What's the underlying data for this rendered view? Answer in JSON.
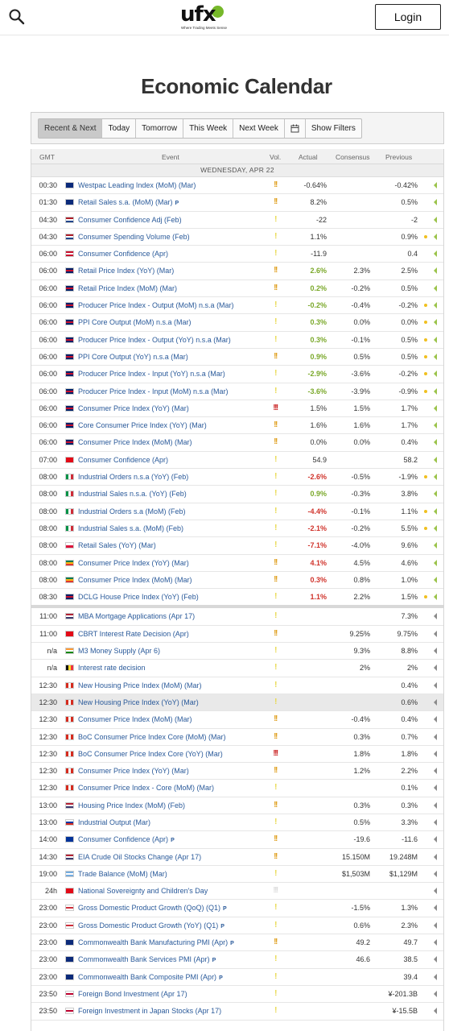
{
  "header": {
    "logo_text": "ufx",
    "logo_tagline": "Where Trading Meets Sense",
    "login_label": "Login",
    "icons": {
      "search": "search-icon",
      "calendar": "calendar-icon"
    }
  },
  "page_title": "Economic Calendar",
  "filters": {
    "buttons": [
      "Recent & Next",
      "Today",
      "Tomorrow",
      "This Week",
      "Next Week"
    ],
    "active": "Recent & Next",
    "show_filters_label": "Show Filters"
  },
  "table": {
    "columns": {
      "gmt": "GMT",
      "event": "Event",
      "vol": "Vol.",
      "actual": "Actual",
      "consensus": "Consensus",
      "previous": "Previous"
    },
    "day_header": "WEDNESDAY, APR 22",
    "colors": {
      "volatility_high": "#cc2a2a",
      "volatility_med": "#e0a020",
      "volatility_low": "#e8d84a",
      "positive": "#7aa82a",
      "negative": "#d0332b",
      "link": "#2a5a9a",
      "outcome_dot": "#f0c020"
    },
    "rows": [
      {
        "time": "00:30",
        "flag": "AU",
        "event": "Westpac Leading Index (MoM) (Mar)",
        "vol": "!!",
        "vol_level": "med",
        "actual": "-0.64%",
        "actual_class": "",
        "consensus": "",
        "previous": "-0.42%",
        "dot": false,
        "green_arrow": true
      },
      {
        "time": "01:30",
        "flag": "AU",
        "event": "Retail Sales s.a. (MoM) (Mar)",
        "pmark": true,
        "vol": "!!",
        "vol_level": "med",
        "actual": "8.2%",
        "actual_class": "",
        "consensus": "",
        "previous": "0.5%",
        "dot": false,
        "green_arrow": true
      },
      {
        "time": "04:30",
        "flag": "NL",
        "event": "Consumer Confidence Adj (Feb)",
        "vol": "!",
        "vol_level": "low",
        "actual": "-22",
        "actual_class": "",
        "consensus": "",
        "previous": "-2",
        "dot": false,
        "green_arrow": true
      },
      {
        "time": "04:30",
        "flag": "NL",
        "event": "Consumer Spending Volume (Feb)",
        "vol": "!",
        "vol_level": "low",
        "actual": "1.1%",
        "actual_class": "",
        "consensus": "",
        "previous": "0.9%",
        "dot": true,
        "green_arrow": true
      },
      {
        "time": "06:00",
        "flag": "DK",
        "event": "Consumer Confidence (Apr)",
        "vol": "!",
        "vol_level": "low",
        "actual": "-11.9",
        "actual_class": "",
        "consensus": "",
        "previous": "0.4",
        "dot": false,
        "green_arrow": true
      },
      {
        "time": "06:00",
        "flag": "GB",
        "event": "Retail Price Index (YoY) (Mar)",
        "vol": "!!",
        "vol_level": "med",
        "actual": "2.6%",
        "actual_class": "pos",
        "consensus": "2.3%",
        "previous": "2.5%",
        "dot": false,
        "green_arrow": true
      },
      {
        "time": "06:00",
        "flag": "GB",
        "event": "Retail Price Index (MoM) (Mar)",
        "vol": "!!",
        "vol_level": "med",
        "actual": "0.2%",
        "actual_class": "pos",
        "consensus": "-0.2%",
        "previous": "0.5%",
        "dot": false,
        "green_arrow": true
      },
      {
        "time": "06:00",
        "flag": "GB",
        "event": "Producer Price Index - Output (MoM) n.s.a (Mar)",
        "vol": "!",
        "vol_level": "low",
        "actual": "-0.2%",
        "actual_class": "pos",
        "consensus": "-0.4%",
        "previous": "-0.2%",
        "dot": true,
        "green_arrow": true
      },
      {
        "time": "06:00",
        "flag": "GB",
        "event": "PPI Core Output (MoM) n.s.a (Mar)",
        "vol": "!",
        "vol_level": "low",
        "actual": "0.3%",
        "actual_class": "pos",
        "consensus": "0.0%",
        "previous": "0.0%",
        "dot": true,
        "green_arrow": true
      },
      {
        "time": "06:00",
        "flag": "GB",
        "event": "Producer Price Index - Output (YoY) n.s.a (Mar)",
        "vol": "!",
        "vol_level": "low",
        "actual": "0.3%",
        "actual_class": "pos",
        "consensus": "-0.1%",
        "previous": "0.5%",
        "dot": true,
        "green_arrow": true
      },
      {
        "time": "06:00",
        "flag": "GB",
        "event": "PPI Core Output (YoY) n.s.a (Mar)",
        "vol": "!!",
        "vol_level": "med",
        "actual": "0.9%",
        "actual_class": "pos",
        "consensus": "0.5%",
        "previous": "0.5%",
        "dot": true,
        "green_arrow": true
      },
      {
        "time": "06:00",
        "flag": "GB",
        "event": "Producer Price Index - Input (YoY) n.s.a (Mar)",
        "vol": "!",
        "vol_level": "low",
        "actual": "-2.9%",
        "actual_class": "pos",
        "consensus": "-3.6%",
        "previous": "-0.2%",
        "dot": true,
        "green_arrow": true
      },
      {
        "time": "06:00",
        "flag": "GB",
        "event": "Producer Price Index - Input (MoM) n.s.a (Mar)",
        "vol": "!",
        "vol_level": "low",
        "actual": "-3.6%",
        "actual_class": "pos",
        "consensus": "-3.9%",
        "previous": "-0.9%",
        "dot": true,
        "green_arrow": true
      },
      {
        "time": "06:00",
        "flag": "GB",
        "event": "Consumer Price Index (YoY) (Mar)",
        "vol": "!!!",
        "vol_level": "high",
        "actual": "1.5%",
        "actual_class": "",
        "consensus": "1.5%",
        "previous": "1.7%",
        "dot": false,
        "green_arrow": true
      },
      {
        "time": "06:00",
        "flag": "GB",
        "event": "Core Consumer Price Index (YoY) (Mar)",
        "vol": "!!",
        "vol_level": "med",
        "actual": "1.6%",
        "actual_class": "",
        "consensus": "1.6%",
        "previous": "1.7%",
        "dot": false,
        "green_arrow": true
      },
      {
        "time": "06:00",
        "flag": "GB",
        "event": "Consumer Price Index (MoM) (Mar)",
        "vol": "!!",
        "vol_level": "med",
        "actual": "0.0%",
        "actual_class": "",
        "consensus": "0.0%",
        "previous": "0.4%",
        "dot": false,
        "green_arrow": true
      },
      {
        "time": "07:00",
        "flag": "TR",
        "event": "Consumer Confidence (Apr)",
        "vol": "!",
        "vol_level": "low",
        "actual": "54.9",
        "actual_class": "",
        "consensus": "",
        "previous": "58.2",
        "dot": false,
        "green_arrow": true
      },
      {
        "time": "08:00",
        "flag": "IT",
        "event": "Industrial Orders n.s.a (YoY) (Feb)",
        "vol": "!",
        "vol_level": "low",
        "actual": "-2.6%",
        "actual_class": "neg",
        "consensus": "-0.5%",
        "previous": "-1.9%",
        "dot": true,
        "green_arrow": true
      },
      {
        "time": "08:00",
        "flag": "IT",
        "event": "Industrial Sales n.s.a. (YoY) (Feb)",
        "vol": "!",
        "vol_level": "low",
        "actual": "0.9%",
        "actual_class": "pos",
        "consensus": "-0.3%",
        "previous": "3.8%",
        "dot": false,
        "green_arrow": true
      },
      {
        "time": "08:00",
        "flag": "IT",
        "event": "Industrial Orders s.a (MoM) (Feb)",
        "vol": "!",
        "vol_level": "low",
        "actual": "-4.4%",
        "actual_class": "neg",
        "consensus": "-0.1%",
        "previous": "1.1%",
        "dot": true,
        "green_arrow": true
      },
      {
        "time": "08:00",
        "flag": "IT",
        "event": "Industrial Sales s.a. (MoM) (Feb)",
        "vol": "!",
        "vol_level": "low",
        "actual": "-2.1%",
        "actual_class": "neg",
        "consensus": "-0.2%",
        "previous": "5.5%",
        "dot": true,
        "green_arrow": true
      },
      {
        "time": "08:00",
        "flag": "PL",
        "event": "Retail Sales (YoY) (Mar)",
        "vol": "!",
        "vol_level": "low",
        "actual": "-7.1%",
        "actual_class": "neg",
        "consensus": "-4.0%",
        "previous": "9.6%",
        "dot": false,
        "green_arrow": true
      },
      {
        "time": "08:00",
        "flag": "ZA",
        "event": "Consumer Price Index (YoY) (Mar)",
        "vol": "!!",
        "vol_level": "med",
        "actual": "4.1%",
        "actual_class": "neg",
        "consensus": "4.5%",
        "previous": "4.6%",
        "dot": false,
        "green_arrow": true
      },
      {
        "time": "08:00",
        "flag": "ZA",
        "event": "Consumer Price Index (MoM) (Mar)",
        "vol": "!!",
        "vol_level": "med",
        "actual": "0.3%",
        "actual_class": "neg",
        "consensus": "0.8%",
        "previous": "1.0%",
        "dot": false,
        "green_arrow": true
      },
      {
        "time": "08:30",
        "flag": "GB",
        "event": "DCLG House Price Index (YoY) (Feb)",
        "vol": "!",
        "vol_level": "low",
        "actual": "1.1%",
        "actual_class": "neg",
        "consensus": "2.2%",
        "previous": "1.5%",
        "dot": true,
        "green_arrow": true,
        "separator": true
      },
      {
        "time": "11:00",
        "flag": "US",
        "event": "MBA Mortgage Applications (Apr 17)",
        "vol": "!",
        "vol_level": "low",
        "actual": "",
        "actual_class": "",
        "consensus": "",
        "previous": "7.3%",
        "dot": false,
        "green_arrow": false
      },
      {
        "time": "11:00",
        "flag": "TR",
        "event": "CBRT Interest Rate Decision (Apr)",
        "vol": "!!",
        "vol_level": "med",
        "actual": "",
        "actual_class": "",
        "consensus": "9.25%",
        "previous": "9.75%",
        "dot": false,
        "green_arrow": false
      },
      {
        "time": "n/a",
        "flag": "IN",
        "event": "M3 Money Supply (Apr 6)",
        "vol": "!",
        "vol_level": "low",
        "actual": "",
        "actual_class": "",
        "consensus": "9.3%",
        "previous": "8.8%",
        "dot": false,
        "green_arrow": false
      },
      {
        "time": "n/a",
        "flag": "BE",
        "event": "Interest rate decision",
        "vol": "!",
        "vol_level": "low",
        "actual": "",
        "actual_class": "",
        "consensus": "2%",
        "previous": "2%",
        "dot": false,
        "green_arrow": false
      },
      {
        "time": "12:30",
        "flag": "CA",
        "event": "New Housing Price Index (MoM) (Mar)",
        "vol": "!",
        "vol_level": "low",
        "actual": "",
        "actual_class": "",
        "consensus": "",
        "previous": "0.4%",
        "dot": false,
        "green_arrow": false
      },
      {
        "time": "12:30",
        "flag": "CA",
        "event": "New Housing Price Index (YoY) (Mar)",
        "vol": "!",
        "vol_level": "low",
        "actual": "",
        "actual_class": "",
        "consensus": "",
        "previous": "0.6%",
        "dot": false,
        "green_arrow": false,
        "highlight": true
      },
      {
        "time": "12:30",
        "flag": "CA",
        "event": "Consumer Price Index (MoM) (Mar)",
        "vol": "!!",
        "vol_level": "med",
        "actual": "",
        "actual_class": "",
        "consensus": "-0.4%",
        "previous": "0.4%",
        "dot": false,
        "green_arrow": false
      },
      {
        "time": "12:30",
        "flag": "CA",
        "event": "BoC Consumer Price Index Core (MoM) (Mar)",
        "vol": "!!",
        "vol_level": "med",
        "actual": "",
        "actual_class": "",
        "consensus": "0.3%",
        "previous": "0.7%",
        "dot": false,
        "green_arrow": false
      },
      {
        "time": "12:30",
        "flag": "CA",
        "event": "BoC Consumer Price Index Core (YoY) (Mar)",
        "vol": "!!!",
        "vol_level": "high",
        "actual": "",
        "actual_class": "",
        "consensus": "1.8%",
        "previous": "1.8%",
        "dot": false,
        "green_arrow": false
      },
      {
        "time": "12:30",
        "flag": "CA",
        "event": "Consumer Price Index (YoY) (Mar)",
        "vol": "!!",
        "vol_level": "med",
        "actual": "",
        "actual_class": "",
        "consensus": "1.2%",
        "previous": "2.2%",
        "dot": false,
        "green_arrow": false
      },
      {
        "time": "12:30",
        "flag": "CA",
        "event": "Consumer Price Index - Core (MoM) (Mar)",
        "vol": "!",
        "vol_level": "low",
        "actual": "",
        "actual_class": "",
        "consensus": "",
        "previous": "0.1%",
        "dot": false,
        "green_arrow": false
      },
      {
        "time": "13:00",
        "flag": "US",
        "event": "Housing Price Index (MoM) (Feb)",
        "vol": "!!",
        "vol_level": "med",
        "actual": "",
        "actual_class": "",
        "consensus": "0.3%",
        "previous": "0.3%",
        "dot": false,
        "green_arrow": false
      },
      {
        "time": "13:00",
        "flag": "RU",
        "event": "Industrial Output (Mar)",
        "vol": "!",
        "vol_level": "low",
        "actual": "",
        "actual_class": "",
        "consensus": "0.5%",
        "previous": "3.3%",
        "dot": false,
        "green_arrow": false
      },
      {
        "time": "14:00",
        "flag": "EU",
        "event": "Consumer Confidence (Apr)",
        "pmark": true,
        "vol": "!!",
        "vol_level": "med",
        "actual": "",
        "actual_class": "",
        "consensus": "-19.6",
        "previous": "-11.6",
        "dot": false,
        "green_arrow": false
      },
      {
        "time": "14:30",
        "flag": "US",
        "event": "EIA Crude Oil Stocks Change (Apr 17)",
        "vol": "!!",
        "vol_level": "med",
        "actual": "",
        "actual_class": "",
        "consensus": "15.150M",
        "previous": "19.248M",
        "dot": false,
        "green_arrow": false
      },
      {
        "time": "19:00",
        "flag": "AR",
        "event": "Trade Balance (MoM) (Mar)",
        "vol": "!",
        "vol_level": "low",
        "actual": "",
        "actual_class": "",
        "consensus": "$1,503M",
        "previous": "$1,129M",
        "dot": false,
        "green_arrow": false
      },
      {
        "time": "24h",
        "flag": "TR",
        "event": "National Sovereignty and Children's Day",
        "vol": "!!!",
        "vol_level": "none",
        "actual": "",
        "actual_class": "",
        "consensus": "",
        "previous": "",
        "dot": false,
        "green_arrow": false
      },
      {
        "time": "23:00",
        "flag": "KR",
        "event": "Gross Domestic Product Growth (QoQ) (Q1)",
        "pmark": true,
        "vol": "!",
        "vol_level": "low",
        "actual": "",
        "actual_class": "",
        "consensus": "-1.5%",
        "previous": "1.3%",
        "dot": false,
        "green_arrow": false
      },
      {
        "time": "23:00",
        "flag": "KR",
        "event": "Gross Domestic Product Growth (YoY) (Q1)",
        "pmark": true,
        "vol": "!",
        "vol_level": "low",
        "actual": "",
        "actual_class": "",
        "consensus": "0.6%",
        "previous": "2.3%",
        "dot": false,
        "green_arrow": false
      },
      {
        "time": "23:00",
        "flag": "AU",
        "event": "Commonwealth Bank Manufacturing PMI (Apr)",
        "pmark": true,
        "vol": "!!",
        "vol_level": "med",
        "actual": "",
        "actual_class": "",
        "consensus": "49.2",
        "previous": "49.7",
        "dot": false,
        "green_arrow": false
      },
      {
        "time": "23:00",
        "flag": "AU",
        "event": "Commonwealth Bank Services PMI (Apr)",
        "pmark": true,
        "vol": "!",
        "vol_level": "low",
        "actual": "",
        "actual_class": "",
        "consensus": "46.6",
        "previous": "38.5",
        "dot": false,
        "green_arrow": false
      },
      {
        "time": "23:00",
        "flag": "AU",
        "event": "Commonwealth Bank Composite PMI (Apr)",
        "pmark": true,
        "vol": "!",
        "vol_level": "low",
        "actual": "",
        "actual_class": "",
        "consensus": "",
        "previous": "39.4",
        "dot": false,
        "green_arrow": false
      },
      {
        "time": "23:50",
        "flag": "JP",
        "event": "Foreign Bond Investment (Apr 17)",
        "vol": "!",
        "vol_level": "low",
        "actual": "",
        "actual_class": "",
        "consensus": "",
        "previous": "¥-201.3B",
        "dot": false,
        "green_arrow": false
      },
      {
        "time": "23:50",
        "flag": "JP",
        "event": "Foreign Investment in Japan Stocks (Apr 17)",
        "vol": "!",
        "vol_level": "low",
        "actual": "",
        "actual_class": "",
        "consensus": "",
        "previous": "¥-15.5B",
        "dot": false,
        "green_arrow": false
      }
    ]
  }
}
